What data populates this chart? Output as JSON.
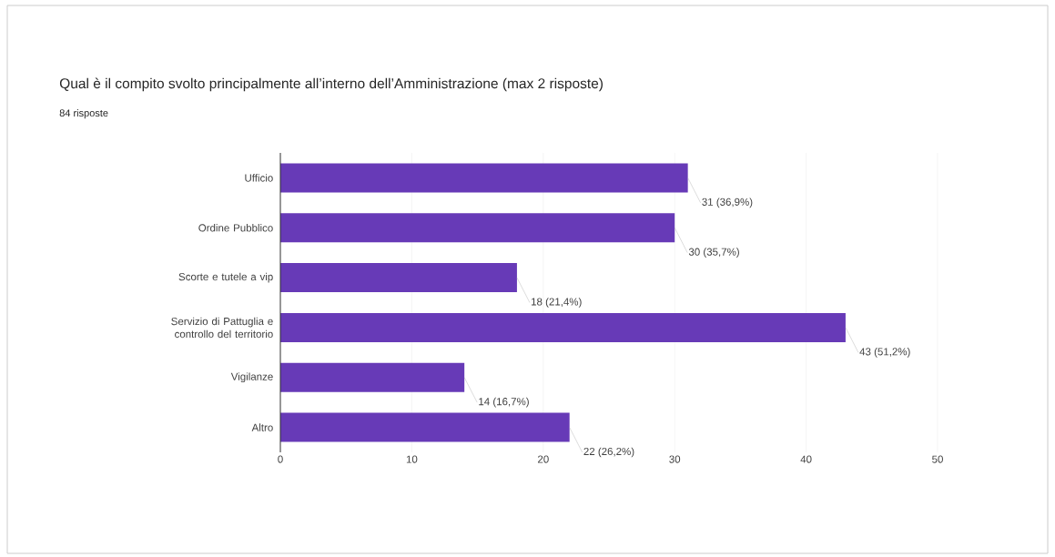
{
  "chart_data": {
    "type": "bar",
    "orientation": "horizontal",
    "title": "Qual è il compito svolto principalmente all’interno dell’Amministrazione (max 2 risposte)",
    "subtitle": "84 risposte",
    "categories": [
      "Ufficio",
      "Ordine Pubblico",
      "Scorte e tutele a vip",
      "Servizio di Pattuglia e controllo del territorio",
      "Vigilanze",
      "Altro"
    ],
    "values": [
      31,
      30,
      18,
      43,
      14,
      22
    ],
    "value_labels": [
      "31 (36,9%)",
      "30 (35,7%)",
      "18 (21,4%)",
      "43 (51,2%)",
      "14 (16,7%)",
      "22 (26,2%)"
    ],
    "color": "#673ab7",
    "xlim": [
      0,
      50
    ],
    "xticks": [
      0,
      10,
      20,
      30,
      40,
      50
    ],
    "grid": "x"
  }
}
